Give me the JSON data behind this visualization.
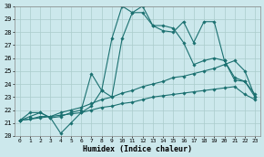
{
  "title": "",
  "xlabel": "Humidex (Indice chaleur)",
  "ylabel": "",
  "bg_color": "#cce8ec",
  "grid_color": "#aacccc",
  "line_color": "#1a7070",
  "xlim": [
    -0.5,
    23.5
  ],
  "ylim": [
    20,
    30
  ],
  "xticks": [
    0,
    1,
    2,
    3,
    4,
    5,
    6,
    7,
    8,
    9,
    10,
    11,
    12,
    13,
    14,
    15,
    16,
    17,
    18,
    19,
    20,
    21,
    22,
    23
  ],
  "yticks": [
    20,
    21,
    22,
    23,
    24,
    25,
    26,
    27,
    28,
    29,
    30
  ],
  "series": [
    {
      "x": [
        0,
        1,
        2,
        3,
        4,
        5,
        6,
        7,
        8,
        9,
        10,
        11,
        12,
        13,
        14,
        15,
        16,
        17,
        18,
        19,
        20,
        21,
        22,
        23
      ],
      "y": [
        21.2,
        21.8,
        21.8,
        21.4,
        20.2,
        21.0,
        21.8,
        22.3,
        23.5,
        27.5,
        30.0,
        29.5,
        30.0,
        28.5,
        28.1,
        28.0,
        28.8,
        27.2,
        28.8,
        28.8,
        25.8,
        24.3,
        24.2,
        23.0
      ]
    },
    {
      "x": [
        0,
        1,
        2,
        3,
        4,
        5,
        6,
        7,
        8,
        9,
        10,
        11,
        12,
        13,
        14,
        15,
        16,
        17,
        18,
        19,
        20,
        21,
        22,
        23
      ],
      "y": [
        21.2,
        21.5,
        21.8,
        21.4,
        21.5,
        21.8,
        22.0,
        24.8,
        23.5,
        23.0,
        27.5,
        29.5,
        29.5,
        28.5,
        28.5,
        28.3,
        27.2,
        25.5,
        25.8,
        26.0,
        25.8,
        24.5,
        24.2,
        23.2
      ]
    },
    {
      "x": [
        0,
        1,
        2,
        3,
        4,
        5,
        6,
        7,
        8,
        9,
        10,
        11,
        12,
        13,
        14,
        15,
        16,
        17,
        18,
        19,
        20,
        21,
        22,
        23
      ],
      "y": [
        21.2,
        21.3,
        21.5,
        21.5,
        21.8,
        22.0,
        22.2,
        22.5,
        22.8,
        23.0,
        23.3,
        23.5,
        23.8,
        24.0,
        24.2,
        24.5,
        24.6,
        24.8,
        25.0,
        25.2,
        25.5,
        25.8,
        25.0,
        23.0
      ]
    },
    {
      "x": [
        0,
        1,
        2,
        3,
        4,
        5,
        6,
        7,
        8,
        9,
        10,
        11,
        12,
        13,
        14,
        15,
        16,
        17,
        18,
        19,
        20,
        21,
        22,
        23
      ],
      "y": [
        21.2,
        21.3,
        21.4,
        21.5,
        21.6,
        21.7,
        21.8,
        22.0,
        22.2,
        22.3,
        22.5,
        22.6,
        22.8,
        23.0,
        23.1,
        23.2,
        23.3,
        23.4,
        23.5,
        23.6,
        23.7,
        23.8,
        23.2,
        22.8
      ]
    }
  ]
}
